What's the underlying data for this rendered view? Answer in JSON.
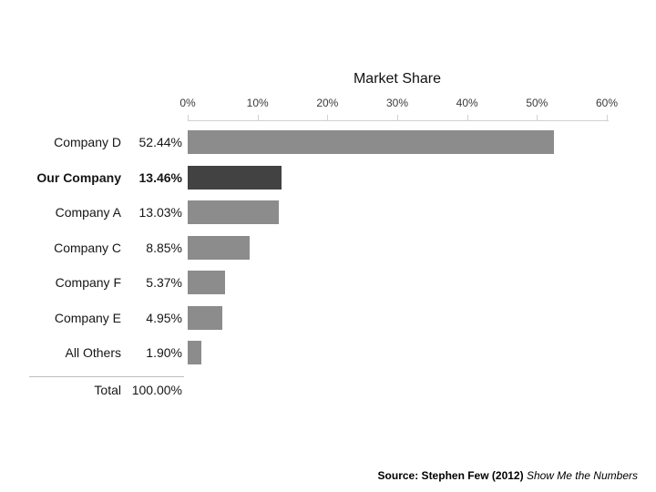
{
  "chart_data": {
    "type": "bar",
    "orientation": "horizontal",
    "title": "Market Share",
    "categories": [
      "Company D",
      "Our Company",
      "Company A",
      "Company C",
      "Company F",
      "Company E",
      "All Others"
    ],
    "values": [
      52.44,
      13.46,
      13.03,
      8.85,
      5.37,
      4.95,
      1.9
    ],
    "value_labels": [
      "52.44%",
      "13.46%",
      "13.03%",
      "8.85%",
      "5.37%",
      "4.95%",
      "1.90%"
    ],
    "highlight_index": 1,
    "highlight_category": "Our Company",
    "x_axis": {
      "min": 0,
      "max": 60,
      "tick_labels": [
        "0%",
        "10%",
        "20%",
        "30%",
        "40%",
        "50%",
        "60%"
      ]
    },
    "total": {
      "label": "Total",
      "value_label": "100.00%",
      "value": 100.0
    },
    "colors": {
      "bar": "#8c8c8c",
      "highlight_bar": "#424242",
      "axis": "#d2d2d2"
    },
    "legend": "none",
    "grid": "off"
  },
  "source": {
    "prefix_bold": "Source: Stephen Few (2012) ",
    "work_title_italic": "Show Me the Numbers"
  }
}
